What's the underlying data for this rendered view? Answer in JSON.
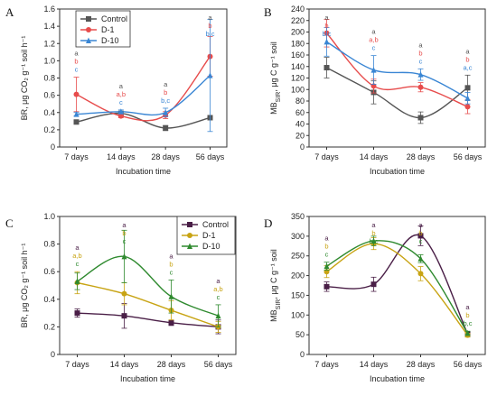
{
  "chart_data": [
    {
      "panel": "A",
      "type": "line",
      "categories": [
        "7 days",
        "14 days",
        "28 days",
        "56 days"
      ],
      "xlabel": "Incubation time",
      "ylabel": "BR, μg CO₂ g⁻¹ soil h⁻¹",
      "ylim": [
        0,
        1.6
      ],
      "yticks": [
        0,
        0.2,
        0.4,
        0.6,
        0.8,
        1.0,
        1.2,
        1.4,
        1.6
      ],
      "ytick_labels": [
        "0",
        "0.2",
        "0.4",
        "0.6",
        "0.8",
        "1.0",
        "1.2",
        "1.4",
        "1.6"
      ],
      "legend": "top-left",
      "series": [
        {
          "name": "Control",
          "color": "#555555",
          "marker": "square",
          "values": [
            0.29,
            0.39,
            0.22,
            0.34
          ],
          "errors": [
            0.02,
            0.02,
            0.03,
            0.0
          ]
        },
        {
          "name": "D-1",
          "color": "#e74c4c",
          "marker": "circle",
          "values": [
            0.61,
            0.36,
            0.37,
            1.05
          ],
          "errors": [
            0.2,
            0.02,
            0.04,
            0.23
          ]
        },
        {
          "name": "D-10",
          "color": "#3a86d4",
          "marker": "triangle",
          "values": [
            0.38,
            0.41,
            0.4,
            0.83
          ],
          "errors": [
            0.02,
            0.02,
            0.05,
            0.65
          ]
        }
      ],
      "letters": [
        [
          "a",
          "b",
          "c"
        ],
        [
          "a",
          "a,b",
          "c"
        ],
        [
          "a",
          "b",
          "b,c"
        ],
        [
          "a",
          "b",
          "b,c"
        ]
      ]
    },
    {
      "panel": "B",
      "type": "line",
      "categories": [
        "7 days",
        "14 days",
        "28 days",
        "56 days"
      ],
      "xlabel": "Incubation time",
      "ylabel": "MB_SIR, μg C g⁻¹ soil",
      "ylim": [
        0,
        240
      ],
      "yticks": [
        0,
        20,
        40,
        60,
        80,
        100,
        120,
        140,
        160,
        180,
        200,
        220,
        240
      ],
      "ytick_labels": [
        "0",
        "20",
        "40",
        "60",
        "80",
        "100",
        "120",
        "140",
        "160",
        "180",
        "200",
        "220",
        "240"
      ],
      "series": [
        {
          "name": "Control",
          "color": "#555555",
          "marker": "square",
          "values": [
            138,
            95,
            51,
            103
          ],
          "errors": [
            18,
            20,
            10,
            22
          ]
        },
        {
          "name": "D-1",
          "color": "#e74c4c",
          "marker": "circle",
          "values": [
            198,
            106,
            104,
            70
          ],
          "errors": [
            24,
            12,
            8,
            12
          ]
        },
        {
          "name": "D-10",
          "color": "#3a86d4",
          "marker": "triangle",
          "values": [
            183,
            134,
            126,
            85
          ],
          "errors": [
            25,
            25,
            10,
            10
          ]
        }
      ],
      "letters": [
        [
          "a",
          "b",
          "b,c"
        ],
        [
          "a",
          "a,b",
          "c"
        ],
        [
          "a",
          "b",
          "c"
        ],
        [
          "a",
          "b",
          "a,c"
        ]
      ]
    },
    {
      "panel": "C",
      "type": "line",
      "categories": [
        "7 days",
        "14 days",
        "28 days",
        "56 days"
      ],
      "xlabel": "Incubation time",
      "ylabel": "BR, μg CO₂ g⁻¹ soil h⁻¹",
      "ylim": [
        0,
        1.0
      ],
      "yticks": [
        0,
        0.2,
        0.4,
        0.6,
        0.8,
        1.0
      ],
      "ytick_labels": [
        "0",
        "0.2",
        "0.4",
        "0.6",
        "0.8",
        "1.0"
      ],
      "legend": "top-right",
      "series": [
        {
          "name": "Control",
          "color": "#4a1f47",
          "marker": "square",
          "values": [
            0.3,
            0.28,
            0.23,
            0.2
          ],
          "errors": [
            0.03,
            0.09,
            0.02,
            0.05
          ]
        },
        {
          "name": "D-1",
          "color": "#c8a414",
          "marker": "circle",
          "values": [
            0.52,
            0.44,
            0.32,
            0.2
          ],
          "errors": [
            0.08,
            0.08,
            0.07,
            0.04
          ]
        },
        {
          "name": "D-10",
          "color": "#2f8a2f",
          "marker": "triangle",
          "values": [
            0.53,
            0.71,
            0.42,
            0.28
          ],
          "errors": [
            0.06,
            0.19,
            0.12,
            0.08
          ]
        }
      ],
      "letters": [
        [
          "a",
          "a,b",
          "c"
        ],
        [
          "a",
          "b",
          "c"
        ],
        [
          "a",
          "b",
          "c"
        ],
        [
          "a",
          "a,b",
          "c"
        ]
      ]
    },
    {
      "panel": "D",
      "type": "line",
      "categories": [
        "7 days",
        "14 days",
        "28 days",
        "56 days"
      ],
      "xlabel": "Incubation time",
      "ylabel": "MB_SIR, μg C g⁻¹ soil",
      "ylim": [
        0,
        350
      ],
      "yticks": [
        0,
        50,
        100,
        150,
        200,
        250,
        300,
        350
      ],
      "ytick_labels": [
        "0",
        "50",
        "100",
        "150",
        "200",
        "250",
        "300",
        "350"
      ],
      "series": [
        {
          "name": "Control",
          "color": "#4a1f47",
          "marker": "square",
          "values": [
            172,
            178,
            301,
            52
          ],
          "errors": [
            12,
            18,
            25,
            5
          ]
        },
        {
          "name": "D-1",
          "color": "#c8a414",
          "marker": "circle",
          "values": [
            210,
            281,
            205,
            49
          ],
          "errors": [
            15,
            15,
            18,
            5
          ]
        },
        {
          "name": "D-10",
          "color": "#2f8a2f",
          "marker": "triangle",
          "values": [
            224,
            288,
            243,
            54
          ],
          "errors": [
            10,
            12,
            10,
            5
          ]
        }
      ],
      "letters": [
        [
          "a",
          "b",
          "c"
        ],
        [
          "a",
          "b",
          "b,c"
        ],
        [
          "a",
          "b",
          "c"
        ],
        [
          "a",
          "b",
          "b,c"
        ]
      ]
    }
  ]
}
